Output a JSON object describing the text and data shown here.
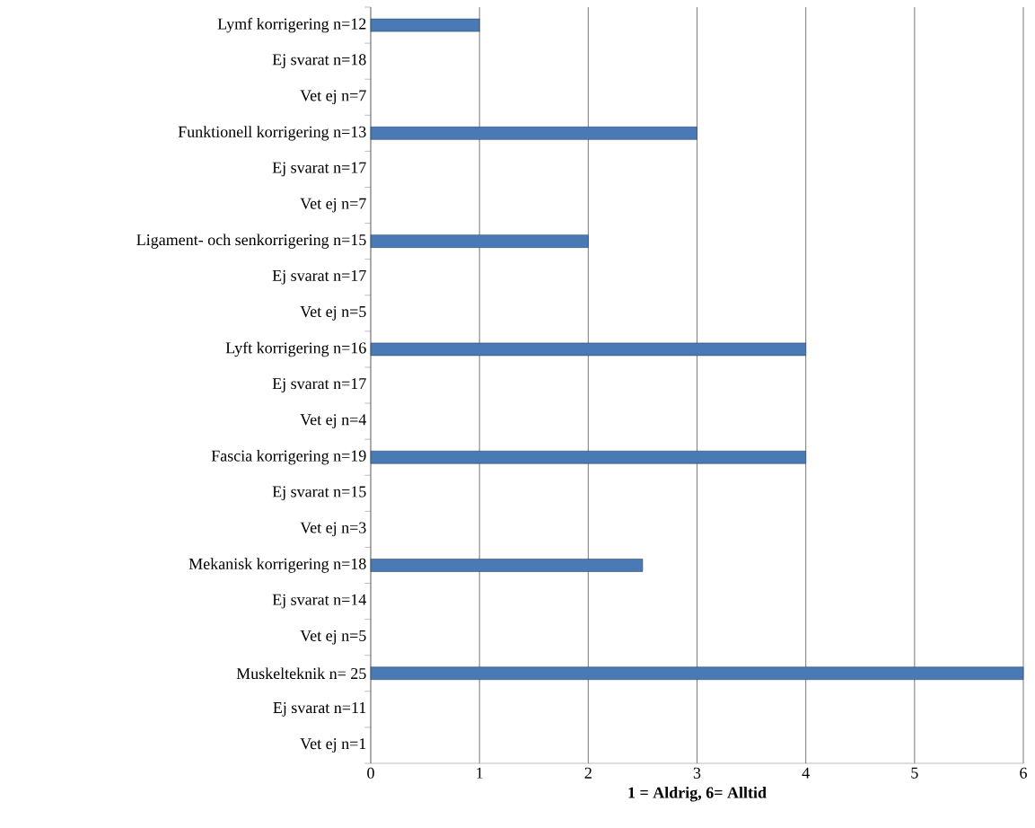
{
  "chart_data": {
    "type": "bar",
    "orientation": "horizontal",
    "xlabel": "1 = Aldrig, 6= Alltid",
    "categories": [
      "Lymf korrigering n=12",
      "Ej svarat n=18",
      "Vet ej n=7",
      "Funktionell korrigering n=13",
      "Ej svarat n=17",
      "Vet ej n=7",
      "Ligament- och senkorrigering n=15",
      "Ej svarat n=17",
      "Vet ej n=5",
      "Lyft korrigering n=16",
      "Ej svarat n=17",
      "Vet ej n=4",
      "Fascia korrigering n=19",
      "Ej svarat n=15",
      "Vet ej n=3",
      "Mekanisk korrigering n=18",
      "Ej svarat n=14",
      "Vet ej n=5",
      "Muskelteknik n= 25",
      "Ej svarat n=11",
      "Vet ej n=1"
    ],
    "values": [
      1,
      null,
      null,
      3,
      null,
      null,
      2,
      null,
      null,
      4,
      null,
      null,
      4,
      null,
      null,
      2.5,
      null,
      null,
      6,
      null,
      null
    ],
    "color": "#4a7ab5",
    "xlim": [
      0,
      6
    ],
    "xticks": [
      0,
      1,
      2,
      3,
      4,
      5,
      6
    ],
    "grid": "x"
  }
}
